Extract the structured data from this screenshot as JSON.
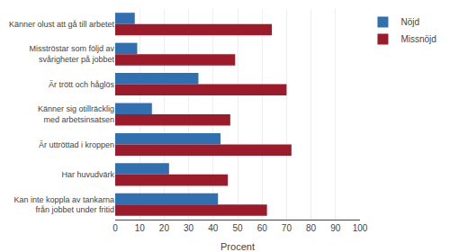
{
  "chart_data": {
    "type": "bar",
    "orientation": "horizontal",
    "categories": [
      "Känner olust att gå till arbetet",
      "Misströstar som följd av\nsvårigheter på jobbet",
      "Är trött och håglös",
      "Känner sig otillräcklig\nmed arbetsinsatsen",
      "Är uttröttad i kroppen",
      "Har huvudvärk",
      "Kan inte koppla av tankarna\nfrån jobbet under fritid"
    ],
    "series": [
      {
        "name": "Nöjd",
        "color": "#3070B0",
        "values": [
          8,
          9,
          34,
          15,
          43,
          22,
          42
        ]
      },
      {
        "name": "Missnöjd",
        "color": "#9B1B2A",
        "values": [
          64,
          49,
          70,
          47,
          72,
          46,
          62
        ]
      }
    ],
    "xlabel": "Procent",
    "xlim": [
      0,
      100
    ],
    "xticks": [
      0,
      10,
      20,
      30,
      40,
      50,
      60,
      70,
      80,
      90,
      100
    ],
    "grid": true,
    "legend": "upper right"
  }
}
